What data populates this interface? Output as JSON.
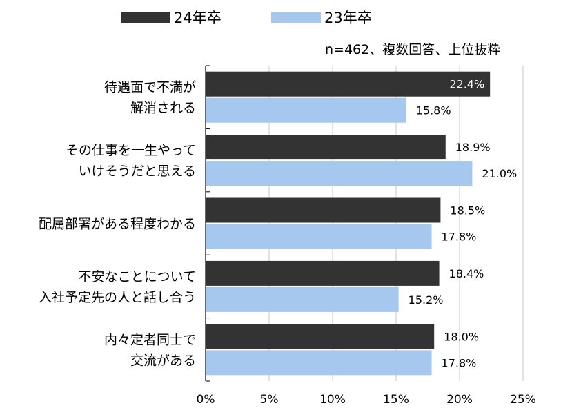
{
  "chart_data": {
    "type": "bar",
    "orientation": "horizontal",
    "note": "n=462、複数回答、上位抜粋",
    "categories": [
      [
        "待遇面で不満が",
        "解消される"
      ],
      [
        "その仕事を一生やって",
        "いけそうだと思える"
      ],
      [
        "配属部署がある程度わかる"
      ],
      [
        "不安なことについて",
        "入社予定先の人と話し合う"
      ],
      [
        "内々定者同士で",
        "交流がある"
      ]
    ],
    "series": [
      {
        "name": "24年卒",
        "color": "#333333",
        "values": [
          22.4,
          18.9,
          18.5,
          18.4,
          18.0
        ],
        "labels": [
          "22.4%",
          "18.9%",
          "18.5%",
          "18.4%",
          "18.0%"
        ]
      },
      {
        "name": "23年卒",
        "color": "#a6c8ee",
        "values": [
          15.8,
          21.0,
          17.8,
          15.2,
          17.8
        ],
        "labels": [
          "15.8%",
          "21.0%",
          "17.8%",
          "15.2%",
          "17.8%"
        ]
      }
    ],
    "xlim": [
      0,
      25
    ],
    "xticks": [
      "0%",
      "5%",
      "10%",
      "15%",
      "20%",
      "25%"
    ],
    "grid": true,
    "legend_position": "top"
  }
}
